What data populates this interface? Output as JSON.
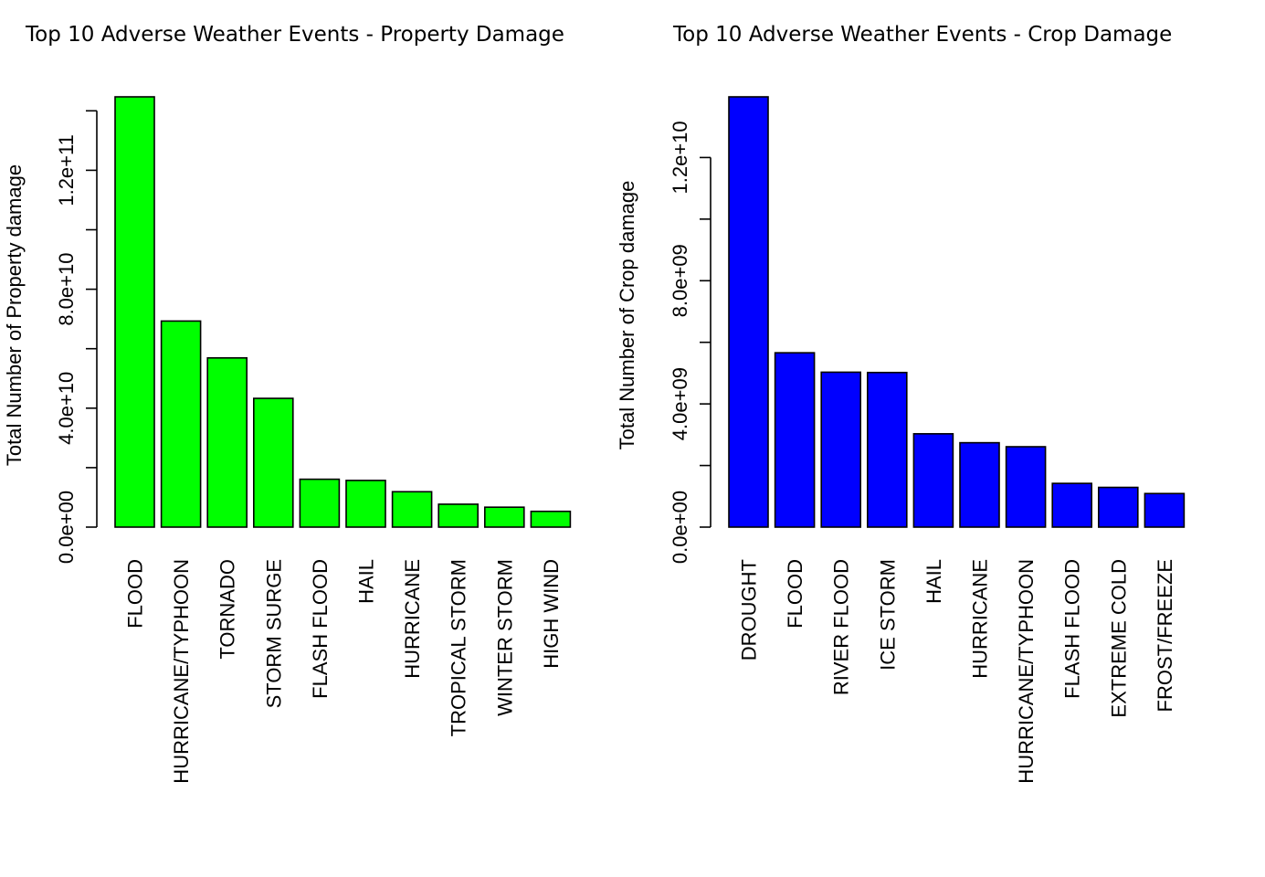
{
  "chart_data": [
    {
      "type": "bar",
      "title": "Top 10 Adverse Weather Events - Property Damage",
      "ylabel": "Total Number of Property damage",
      "xlabel": "",
      "categories": [
        "FLOOD",
        "HURRICANE/TYPHOON",
        "TORNADO",
        "STORM SURGE",
        "FLASH FLOOD",
        "HAIL",
        "HURRICANE",
        "TROPICAL STORM",
        "WINTER STORM",
        "HIGH WIND"
      ],
      "values": [
        144700000000,
        69300000000,
        56900000000,
        43300000000,
        16100000000,
        15700000000,
        11900000000,
        7700000000,
        6700000000,
        5300000000
      ],
      "yticks": [
        0,
        20000000000,
        40000000000,
        60000000000,
        80000000000,
        100000000000,
        120000000000,
        140000000000
      ],
      "ytick_labels": [
        "0.0e+00",
        "",
        "4.0e+10",
        "",
        "8.0e+10",
        "",
        "1.2e+11",
        ""
      ],
      "ylim": [
        0,
        144700000000
      ],
      "bar_color": "#00ff00",
      "grid": false
    },
    {
      "type": "bar",
      "title": "Top 10 Adverse Weather Events - Crop Damage",
      "ylabel": "Total Number of Crop damage",
      "xlabel": "",
      "categories": [
        "DROUGHT",
        "FLOOD",
        "RIVER FLOOD",
        "ICE STORM",
        "HAIL",
        "HURRICANE",
        "HURRICANE/TYPHOON",
        "FLASH FLOOD",
        "EXTREME COLD",
        "FROST/FREEZE"
      ],
      "values": [
        13970000000,
        5660000000,
        5030000000,
        5020000000,
        3030000000,
        2740000000,
        2610000000,
        1420000000,
        1290000000,
        1090000000
      ],
      "yticks": [
        0,
        2000000000,
        4000000000,
        6000000000,
        8000000000,
        10000000000,
        12000000000
      ],
      "ytick_labels": [
        "0.0e+00",
        "",
        "4.0e+09",
        "",
        "8.0e+09",
        "",
        "1.2e+10"
      ],
      "ylim": [
        0,
        13970000000
      ],
      "bar_color": "#0000ff",
      "grid": false
    }
  ]
}
